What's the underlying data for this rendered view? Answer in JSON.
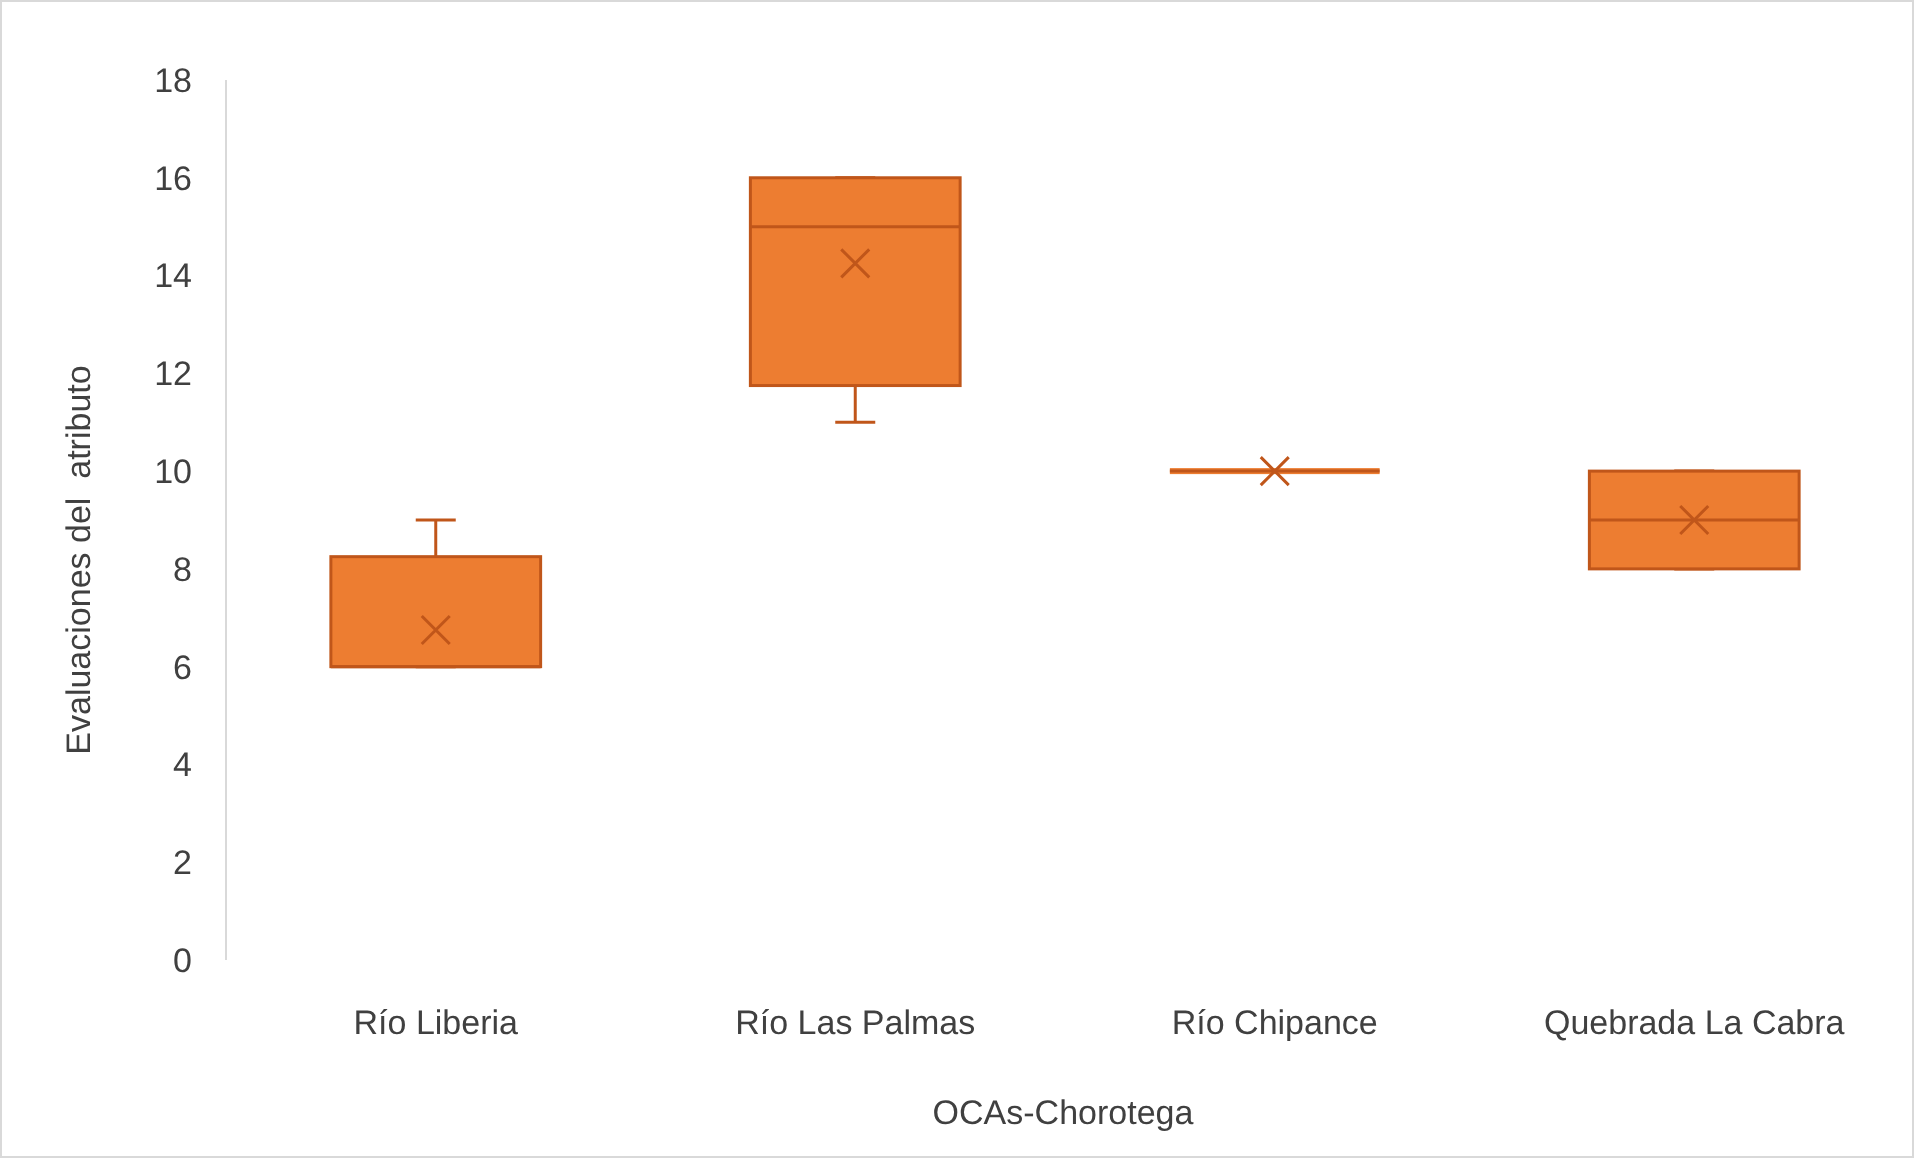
{
  "chart_data": {
    "type": "box",
    "xlabel": "OCAs-Chorotega",
    "ylabel": "Evaluaciones del  atributo",
    "categories": [
      "Río Liberia",
      "Río Las Palmas",
      "Río Chipance",
      "Quebrada La Cabra"
    ],
    "boxes": [
      {
        "low": 6,
        "q1": 6,
        "median": 6,
        "q3": 8.25,
        "high": 9,
        "mean": 6.75
      },
      {
        "low": 11,
        "q1": 11.75,
        "median": 15,
        "q3": 16,
        "high": 16,
        "mean": 14.25
      },
      {
        "low": 10,
        "q1": 10,
        "median": 10,
        "q3": 10,
        "high": 10,
        "mean": 10
      },
      {
        "low": 8,
        "q1": 8,
        "median": 9,
        "q3": 10,
        "high": 10,
        "mean": 9
      }
    ],
    "color": "#ed7d31",
    "ylim": [
      0,
      18
    ],
    "yticks": [
      0,
      2,
      4,
      6,
      8,
      10,
      12,
      14,
      16,
      18
    ],
    "grid": false
  }
}
